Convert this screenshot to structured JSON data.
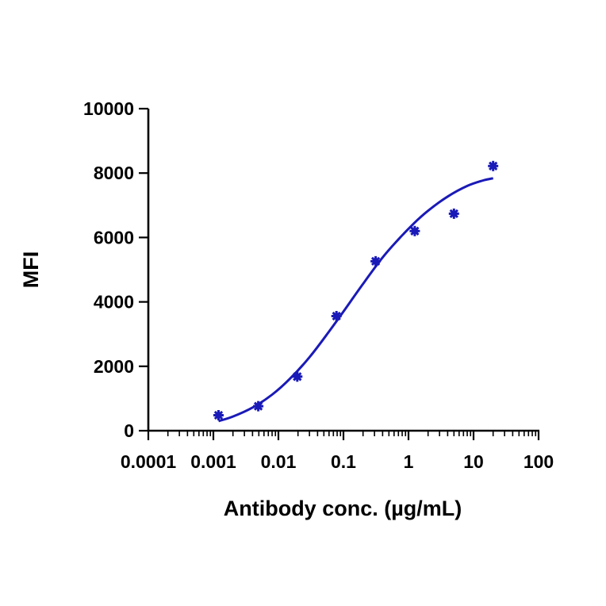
{
  "chart_data": {
    "type": "scatter",
    "title": "",
    "xlabel": "Antibody conc. (µg/mL)",
    "ylabel": "MFI",
    "x_scale": "log",
    "xlim": [
      0.0001,
      100
    ],
    "ylim": [
      0,
      10000
    ],
    "x_ticks": [
      "0.0001",
      "0.001",
      "0.01",
      "0.1",
      "1",
      "10",
      "100"
    ],
    "y_ticks": [
      "0",
      "2000",
      "4000",
      "6000",
      "8000",
      "10000"
    ],
    "grid": false,
    "legend": "none",
    "color": "#1a1ab8",
    "series": [
      {
        "marker": "asterisk",
        "points": [
          {
            "x": 0.0012,
            "y": 480
          },
          {
            "x": 0.0049,
            "y": 760
          },
          {
            "x": 0.0195,
            "y": 1680
          },
          {
            "x": 0.078,
            "y": 3560
          },
          {
            "x": 0.3125,
            "y": 5260
          },
          {
            "x": 1.25,
            "y": 6200
          },
          {
            "x": 5.0,
            "y": 6740
          },
          {
            "x": 20.0,
            "y": 8220
          }
        ]
      }
    ],
    "fit_curve": {
      "x": [
        0.0012,
        0.002,
        0.004,
        0.008,
        0.015,
        0.03,
        0.06,
        0.1,
        0.2,
        0.4,
        0.7,
        1.2,
        2,
        4,
        8,
        14,
        20
      ],
      "y": [
        300,
        440,
        720,
        1120,
        1610,
        2280,
        3080,
        3700,
        4560,
        5380,
        5940,
        6430,
        6830,
        7270,
        7600,
        7770,
        7840
      ]
    }
  }
}
